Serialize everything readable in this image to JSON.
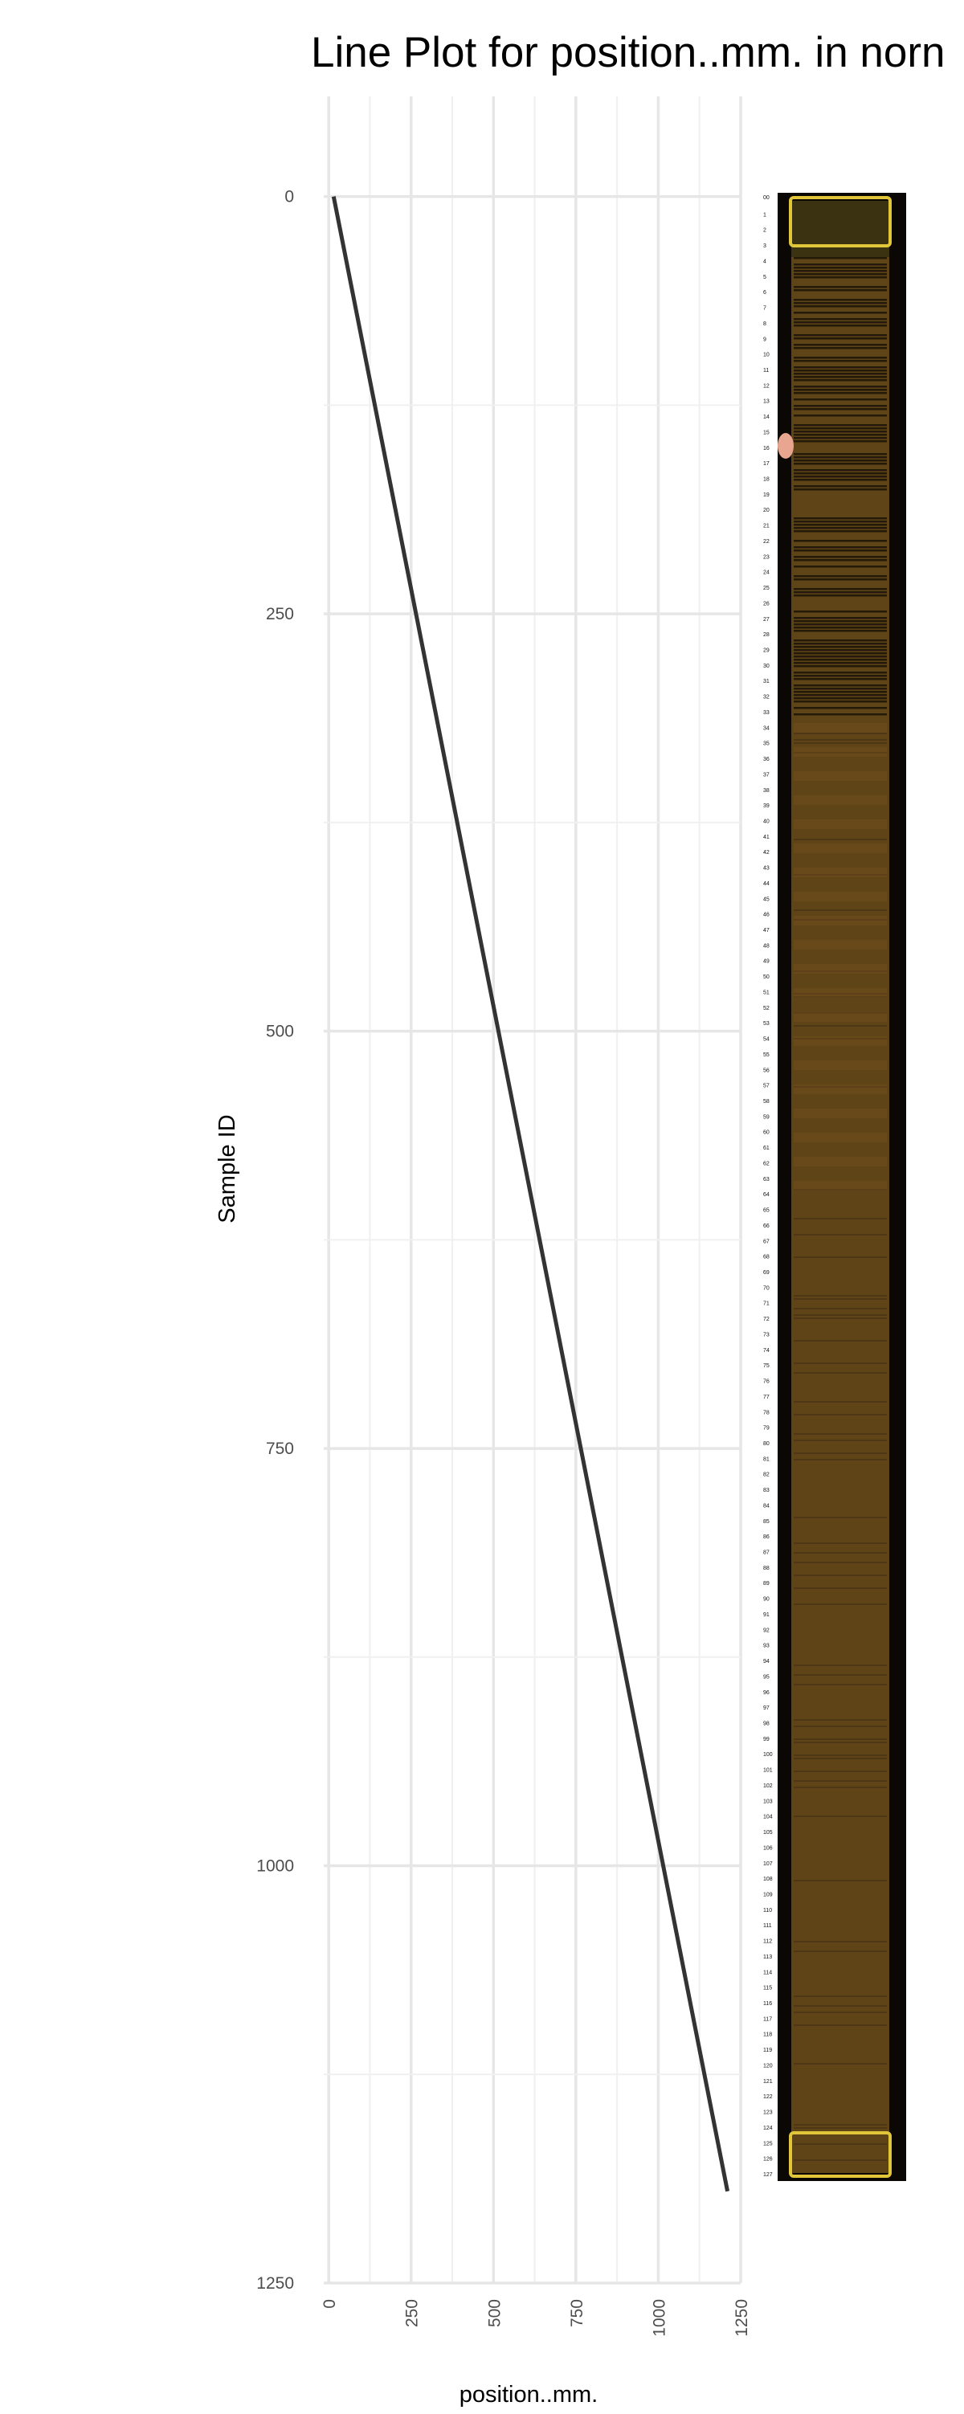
{
  "chart_data": {
    "type": "line",
    "title": "Line Plot for position..mm. in norn",
    "xlabel": "position..mm.",
    "ylabel": "Sample ID",
    "xlim": [
      -15,
      1250
    ],
    "ylim": [
      1250,
      -60
    ],
    "y_reversed": true,
    "x_ticks": [
      0,
      250,
      500,
      750,
      1000,
      1250
    ],
    "y_ticks": [
      0,
      250,
      500,
      750,
      1000,
      1250
    ],
    "grid": true,
    "legend": "none",
    "series": [
      {
        "color": "#333333",
        "points": [
          {
            "x": 15,
            "y": 0
          },
          {
            "x": 1210,
            "y": 1195
          }
        ]
      }
    ],
    "core_image": {
      "sample_labels_start": 1,
      "sample_labels_end": 127,
      "top_label": "00",
      "body_color": "#5f4418",
      "frame_color": "#0b0704",
      "tape_color": "#e2c63a"
    }
  }
}
